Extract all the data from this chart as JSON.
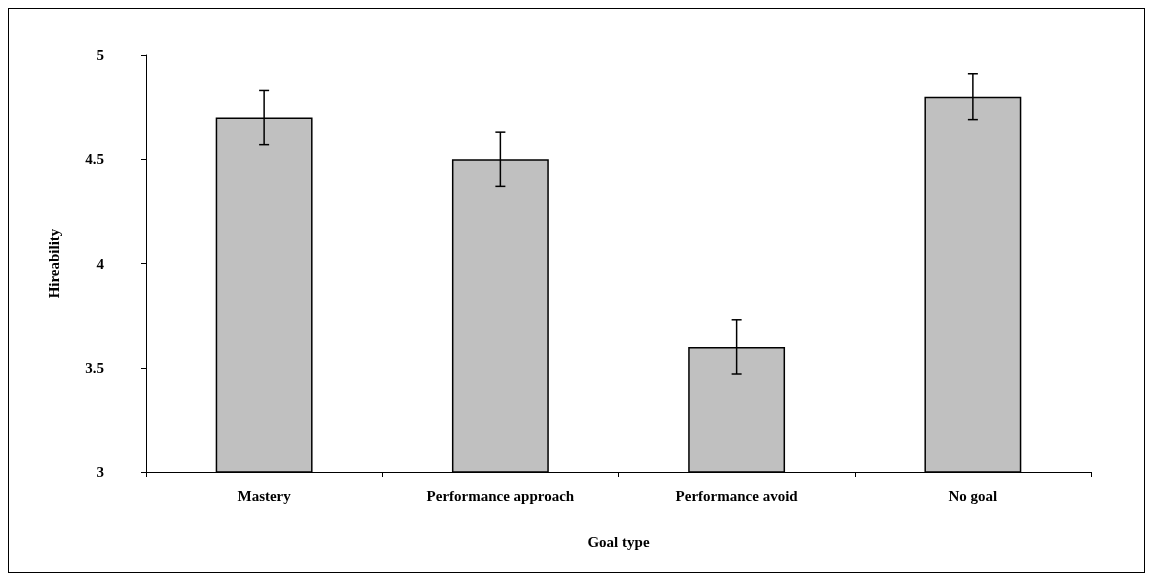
{
  "chart_data": {
    "type": "bar",
    "xlabel": "Goal type",
    "ylabel": "Hireability",
    "categories": [
      "Mastery",
      "Performance approach",
      "Performance avoid",
      "No goal"
    ],
    "values": [
      4.7,
      4.5,
      3.6,
      4.8
    ],
    "errors": [
      0.13,
      0.13,
      0.13,
      0.11
    ],
    "color": "#c0c0c0",
    "ylim": [
      3,
      5
    ],
    "yticks": [
      3,
      3.5,
      4,
      4.5,
      5
    ],
    "grid": false
  }
}
